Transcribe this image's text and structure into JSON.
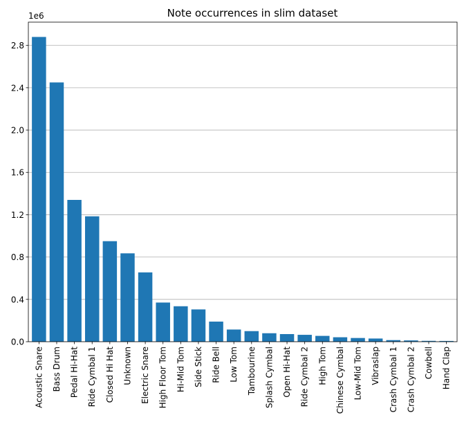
{
  "chart_data": {
    "type": "bar",
    "title": "Note occurrences in slim dataset",
    "xlabel": "",
    "ylabel": "",
    "y_offset_label": "1e6",
    "y_scale": 1000000,
    "ylim": [
      0,
      3020000
    ],
    "yticks": [
      0,
      400000,
      800000,
      1200000,
      1600000,
      2000000,
      2400000,
      2800000
    ],
    "ytick_labels": [
      "0.0",
      "0.4",
      "0.8",
      "1.2",
      "1.6",
      "2.0",
      "2.4",
      "2.8"
    ],
    "grid": "horizontal",
    "bar_color": "#1f77b4",
    "categories": [
      "Acoustic Snare",
      "Bass Drum",
      "Pedal Hi-Hat",
      "Ride Cymbal 1",
      "Closed Hi Hat",
      "Unknown",
      "Electric Snare",
      "High Floor Tom",
      "Hi-Mid Tom",
      "Side Stick",
      "Ride Bell",
      "Low Tom",
      "Tambourine",
      "Splash Cymbal",
      "Open Hi-Hat",
      "Ride Cymbal 2",
      "High Tom",
      "Chinese Cymbal",
      "Low-Mid Tom",
      "Vibraslap",
      "Crash Cymbal 1",
      "Crash Cymbal 2",
      "Cowbell",
      "Hand Clap"
    ],
    "values": [
      2880000,
      2450000,
      1340000,
      1185000,
      950000,
      835000,
      655000,
      370000,
      335000,
      305000,
      190000,
      115000,
      100000,
      80000,
      72000,
      65000,
      55000,
      42000,
      35000,
      30000,
      15000,
      12000,
      8000,
      7000
    ]
  }
}
